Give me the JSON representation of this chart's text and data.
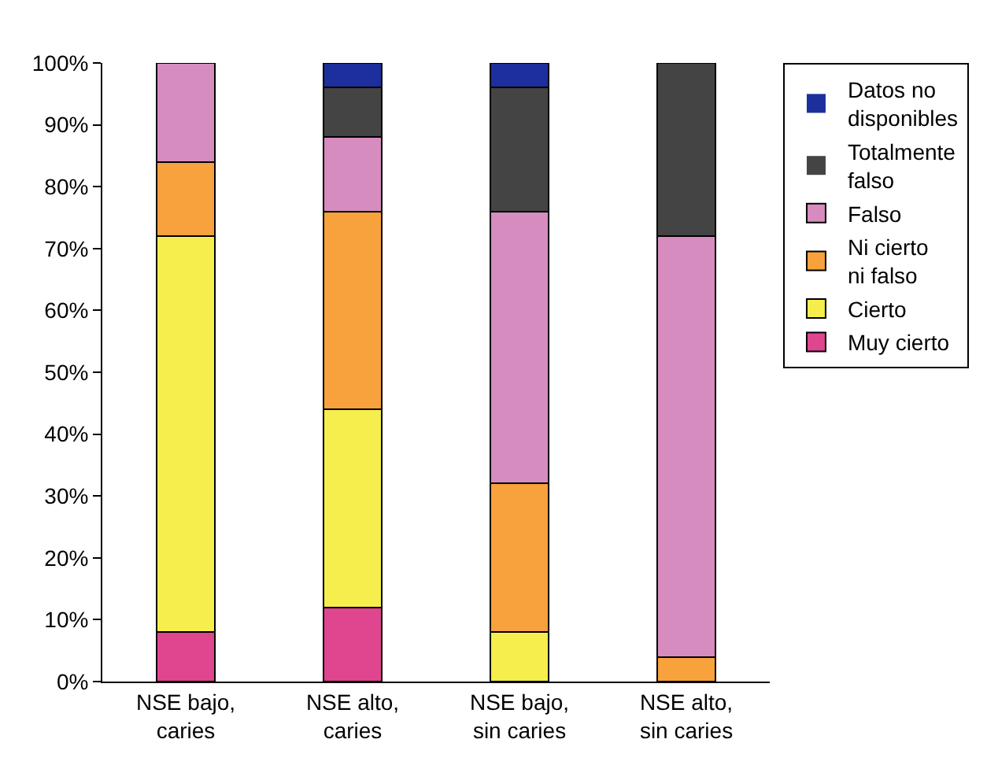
{
  "chart_data": {
    "type": "bar",
    "stacked": true,
    "categories": [
      "NSE bajo, caries",
      "NSE alto, caries",
      "NSE bajo, sin caries",
      "NSE alto, sin caries"
    ],
    "series": [
      {
        "name": "Muy cierto",
        "color": "#e0458f",
        "values": [
          8,
          12,
          0,
          0
        ]
      },
      {
        "name": "Cierto",
        "color": "#f5ee4c",
        "values": [
          64,
          32,
          8,
          0
        ]
      },
      {
        "name": "Ni cierto ni falso",
        "color": "#f7a23c",
        "values": [
          12,
          32,
          24,
          4
        ]
      },
      {
        "name": "Falso",
        "color": "#d68cbf",
        "values": [
          16,
          12,
          44,
          68
        ]
      },
      {
        "name": "Totalmente falso",
        "color": "#444444",
        "values": [
          0,
          8,
          20,
          28
        ]
      },
      {
        "name": "Datos no disponibles",
        "color": "#1c2f9c",
        "values": [
          0,
          4,
          4,
          0
        ]
      }
    ],
    "ylim": [
      0,
      100
    ],
    "yticks": [
      {
        "value": 0,
        "label": "0%"
      },
      {
        "value": 10,
        "label": "10%"
      },
      {
        "value": 20,
        "label": "20%"
      },
      {
        "value": 30,
        "label": "30%"
      },
      {
        "value": 40,
        "label": "40%"
      },
      {
        "value": 50,
        "label": "50%"
      },
      {
        "value": 60,
        "label": "60%"
      },
      {
        "value": 70,
        "label": "70%"
      },
      {
        "value": 80,
        "label": "80%"
      },
      {
        "value": 90,
        "label": "90%"
      },
      {
        "value": 100,
        "label": "100%"
      }
    ],
    "grid": false,
    "legend": "right"
  }
}
